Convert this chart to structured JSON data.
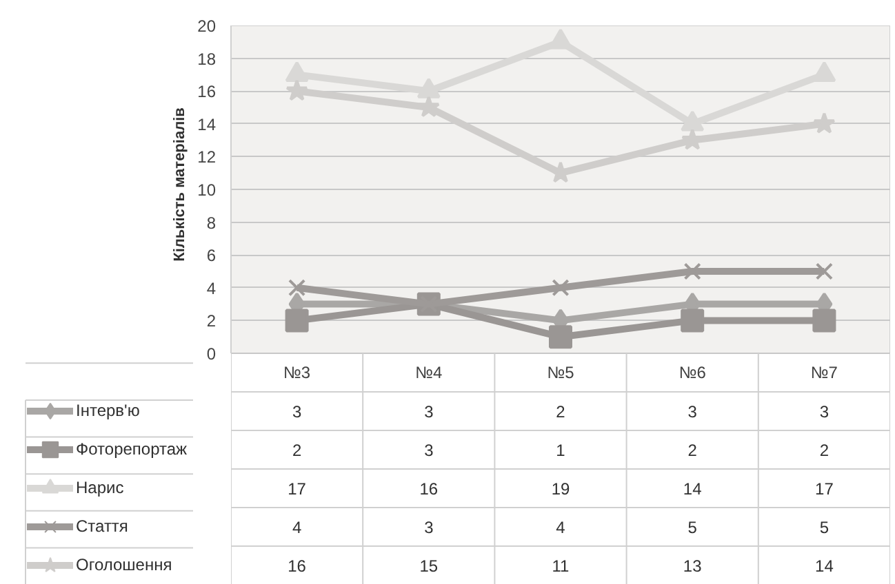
{
  "chart_data": {
    "type": "line",
    "ylabel": "Кількість  матеріалів",
    "categories": [
      "№3",
      "№4",
      "№5",
      "№6",
      "№7"
    ],
    "series": [
      {
        "name": "Інтерв'ю",
        "color": "#a9a7a5",
        "marker": "diamond",
        "values": [
          3,
          3,
          2,
          3,
          3
        ]
      },
      {
        "name": "Фоторепортаж",
        "color": "#9a9694",
        "marker": "square",
        "values": [
          2,
          3,
          1,
          2,
          2
        ]
      },
      {
        "name": "Нарис",
        "color": "#d9d8d6",
        "marker": "triangle",
        "values": [
          17,
          16,
          19,
          14,
          17
        ]
      },
      {
        "name": "Стаття",
        "color": "#9e9a98",
        "marker": "cross",
        "values": [
          4,
          3,
          4,
          5,
          5
        ]
      },
      {
        "name": "Оголошення",
        "color": "#cfcdcb",
        "marker": "star",
        "values": [
          16,
          15,
          11,
          13,
          14
        ]
      }
    ],
    "ylim": [
      0,
      20
    ],
    "yticks": [
      0,
      2,
      4,
      6,
      8,
      10,
      12,
      14,
      16,
      18,
      20
    ],
    "grid": "y",
    "legend": "bottom",
    "data_labels": true
  }
}
